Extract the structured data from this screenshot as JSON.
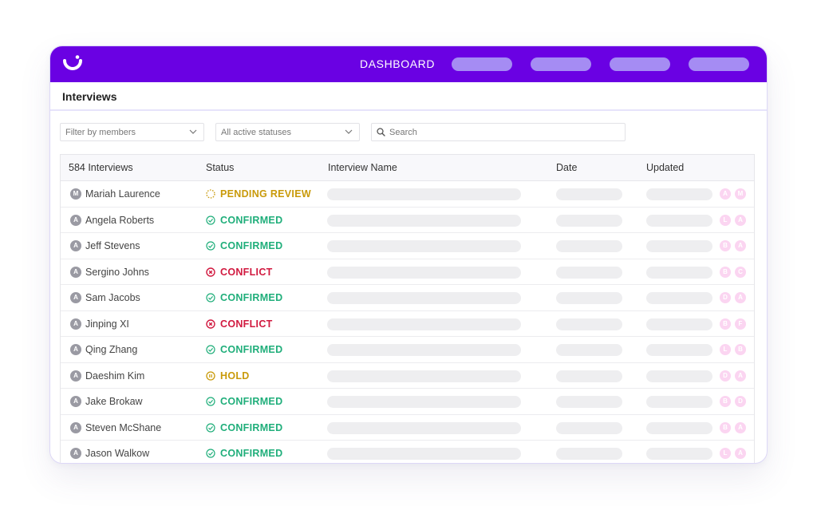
{
  "nav": {
    "title": "DASHBOARD"
  },
  "page": {
    "title": "Interviews"
  },
  "filters": {
    "members_placeholder": "Filter by members",
    "status_placeholder": "All active statuses",
    "search_placeholder": "Search"
  },
  "table": {
    "headers": {
      "count": "584 Interviews",
      "status": "Status",
      "name": "Interview Name",
      "date": "Date",
      "updated": "Updated"
    },
    "rows": [
      {
        "initial": "M",
        "member": "Mariah Laurence",
        "status": "PENDING REVIEW",
        "kind": "pending",
        "u1": "A",
        "u2": "M"
      },
      {
        "initial": "A",
        "member": "Angela Roberts",
        "status": "CONFIRMED",
        "kind": "confirmed",
        "u1": "L",
        "u2": "A"
      },
      {
        "initial": "A",
        "member": "Jeff Stevens",
        "status": "CONFIRMED",
        "kind": "confirmed",
        "u1": "B",
        "u2": "A"
      },
      {
        "initial": "A",
        "member": "Sergino Johns",
        "status": "CONFLICT",
        "kind": "conflict",
        "u1": "B",
        "u2": "C"
      },
      {
        "initial": "A",
        "member": "Sam Jacobs",
        "status": "CONFIRMED",
        "kind": "confirmed",
        "u1": "D",
        "u2": "A"
      },
      {
        "initial": "A",
        "member": "Jinping XI",
        "status": "CONFLICT",
        "kind": "conflict",
        "u1": "B",
        "u2": "F"
      },
      {
        "initial": "A",
        "member": "Qing Zhang",
        "status": "CONFIRMED",
        "kind": "confirmed",
        "u1": "L",
        "u2": "B"
      },
      {
        "initial": "A",
        "member": "Daeshim Kim",
        "status": "HOLD",
        "kind": "hold",
        "u1": "D",
        "u2": "A"
      },
      {
        "initial": "A",
        "member": "Jake Brokaw",
        "status": "CONFIRMED",
        "kind": "confirmed",
        "u1": "B",
        "u2": "D"
      },
      {
        "initial": "A",
        "member": "Steven McShane",
        "status": "CONFIRMED",
        "kind": "confirmed",
        "u1": "B",
        "u2": "A"
      },
      {
        "initial": "A",
        "member": "Jason Walkow",
        "status": "CONFIRMED",
        "kind": "confirmed",
        "u1": "L",
        "u2": "A"
      }
    ]
  },
  "colors": {
    "brand": "#6a01e3",
    "nav_pill": "#a58cf3",
    "confirmed": "#1fae7a",
    "conflict": "#d1193f",
    "pending": "#c99a0a",
    "hold": "#c99a0a",
    "updater_badge": "#fbd5f1"
  },
  "icons": {
    "logo": "logo-icon",
    "chevron": "chevron-down-icon",
    "search": "search-icon",
    "confirmed": "check-circle-icon",
    "conflict": "x-circle-icon",
    "pending": "dotted-circle-icon",
    "hold": "pause-circle-icon"
  }
}
